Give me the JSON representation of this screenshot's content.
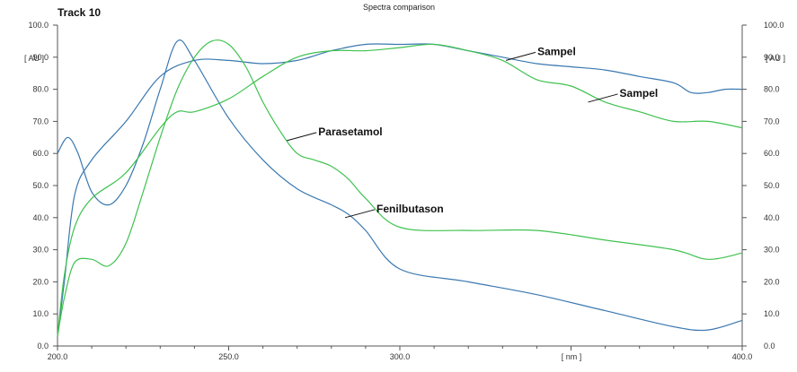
{
  "chart_data": {
    "type": "line",
    "title": "Spectra comparison",
    "track_label": "Track 10",
    "xlabel": "[ nm ]",
    "ylabel_left": "[ AU ]",
    "ylabel_right": "[ AU ]",
    "xlim": [
      200,
      400
    ],
    "ylim": [
      0,
      100
    ],
    "x_ticks": [
      "200.0",
      "250.0",
      "300.0",
      "400.0"
    ],
    "y_ticks": [
      "0.0",
      "10.0",
      "20.0",
      "30.0",
      "40.0",
      "50.0",
      "60.0",
      "70.0",
      "80.0",
      "90.0",
      "100.0"
    ],
    "grid": false,
    "colors": {
      "blue": "#3a78b0",
      "green": "#3fc24f",
      "axis": "#555555"
    },
    "annotations": [
      {
        "text": "Sampel",
        "point": [
          331,
          89
        ]
      },
      {
        "text": "Sampel",
        "point": [
          355,
          76
        ]
      },
      {
        "text": "Parasetamol",
        "point": [
          267,
          64
        ]
      },
      {
        "text": "Fenilbutason",
        "point": [
          284,
          40
        ]
      }
    ],
    "series": [
      {
        "color": "blue",
        "x": [
          200,
          203,
          206,
          210,
          215,
          220,
          225,
          230,
          235,
          240,
          250,
          260,
          270,
          280,
          285,
          290,
          300,
          320,
          340,
          360,
          380,
          390,
          400
        ],
        "values": [
          60,
          65,
          60,
          48,
          44,
          50,
          63,
          80,
          95,
          89,
          71,
          58,
          49,
          44,
          41,
          36,
          24,
          20,
          16,
          11,
          6,
          5,
          8
        ]
      },
      {
        "color": "blue",
        "x": [
          200,
          202,
          205,
          210,
          220,
          230,
          240,
          250,
          260,
          270,
          280,
          290,
          300,
          310,
          320,
          330,
          340,
          350,
          360,
          370,
          380,
          385,
          390,
          395,
          400
        ],
        "values": [
          3,
          20,
          47,
          58,
          70,
          84,
          89,
          89,
          88,
          89,
          92,
          94,
          94,
          94,
          92,
          90,
          88,
          87,
          86,
          84,
          82,
          79,
          79,
          80,
          80
        ]
      },
      {
        "color": "green",
        "x": [
          200,
          202,
          205,
          210,
          215,
          220,
          225,
          230,
          235,
          240,
          245,
          250,
          255,
          260,
          265,
          270,
          275,
          280,
          285,
          290,
          300,
          320,
          340,
          360,
          380,
          390,
          400
        ],
        "values": [
          3,
          15,
          26,
          27,
          25,
          32,
          48,
          65,
          80,
          90,
          95,
          94,
          87,
          76,
          67,
          60,
          58,
          56,
          52,
          46,
          37,
          36,
          36,
          33,
          30,
          27,
          29
        ]
      },
      {
        "color": "green",
        "x": [
          200,
          202,
          205,
          210,
          220,
          230,
          235,
          240,
          250,
          260,
          270,
          280,
          290,
          300,
          310,
          320,
          330,
          340,
          350,
          360,
          370,
          380,
          390,
          400
        ],
        "values": [
          3,
          22,
          37,
          46,
          54,
          68,
          73,
          73,
          77,
          84,
          90,
          92,
          92,
          93,
          94,
          92,
          89,
          83,
          81,
          76,
          73,
          70,
          70,
          68
        ]
      }
    ]
  }
}
